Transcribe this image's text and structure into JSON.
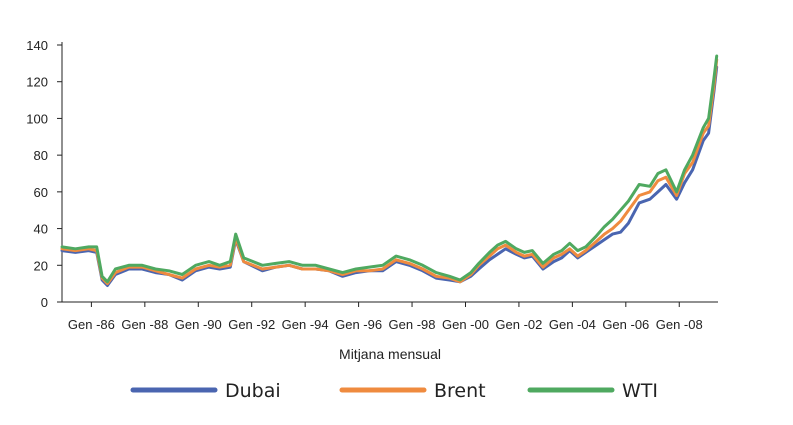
{
  "chart_data": {
    "type": "line",
    "title": "",
    "xlabel": "Mitjana mensual",
    "ylabel": "",
    "ylim": [
      0,
      140
    ],
    "xlim": [
      1984.0,
      2008.55
    ],
    "yticks": [
      0,
      20,
      40,
      60,
      80,
      100,
      120,
      140
    ],
    "xticks": [
      {
        "x": 1985.1,
        "label": "Gen -86"
      },
      {
        "x": 1987.1,
        "label": "Gen -88"
      },
      {
        "x": 1989.1,
        "label": "Gen -90"
      },
      {
        "x": 1991.1,
        "label": "Gen -92"
      },
      {
        "x": 1993.1,
        "label": "Gen -94"
      },
      {
        "x": 1995.1,
        "label": "Gen -96"
      },
      {
        "x": 1997.1,
        "label": "Gen -98"
      },
      {
        "x": 1999.1,
        "label": "Gen -00"
      },
      {
        "x": 2001.1,
        "label": "Gen -02"
      },
      {
        "x": 2003.1,
        "label": "Gen -04"
      },
      {
        "x": 2005.1,
        "label": "Gen -06"
      },
      {
        "x": 2007.1,
        "label": "Gen -08"
      }
    ],
    "grid": false,
    "legend_position": "bottom",
    "x": [
      1984.0,
      1984.5,
      1985.0,
      1985.3,
      1985.5,
      1985.7,
      1986.0,
      1986.5,
      1987.0,
      1987.5,
      1988.0,
      1988.5,
      1989.0,
      1989.5,
      1989.9,
      1990.3,
      1990.5,
      1990.8,
      1991.5,
      1992.0,
      1992.5,
      1993.0,
      1993.5,
      1994.0,
      1994.5,
      1995.0,
      1995.5,
      1996.0,
      1996.5,
      1997.0,
      1997.5,
      1998.0,
      1998.5,
      1998.9,
      1999.3,
      1999.6,
      2000.0,
      2000.3,
      2000.6,
      2001.0,
      2001.3,
      2001.6,
      2002.0,
      2002.4,
      2002.7,
      2003.0,
      2003.3,
      2003.6,
      2004.0,
      2004.3,
      2004.6,
      2004.9,
      2005.2,
      2005.6,
      2006.0,
      2006.3,
      2006.6,
      2007.0,
      2007.3,
      2007.6,
      2008.0,
      2008.2,
      2008.4,
      2008.5
    ],
    "series": [
      {
        "name": "Dubai",
        "color": "#4a65b0",
        "values": [
          28,
          27,
          28,
          27,
          12,
          9,
          15,
          18,
          18,
          16,
          15,
          12,
          17,
          19,
          18,
          19,
          34,
          22,
          17,
          19,
          20,
          18,
          18,
          17,
          14,
          16,
          17,
          17,
          22,
          20,
          17,
          13,
          12,
          11,
          14,
          18,
          23,
          26,
          29,
          26,
          24,
          25,
          18,
          22,
          24,
          28,
          24,
          27,
          31,
          34,
          37,
          38,
          43,
          54,
          56,
          60,
          64,
          56,
          65,
          72,
          88,
          92,
          115,
          128
        ]
      },
      {
        "name": "Brent",
        "color": "#ef8b3f",
        "values": [
          29,
          28,
          29,
          28,
          13,
          10,
          16,
          19,
          19,
          17,
          15,
          13,
          18,
          20,
          19,
          20,
          35,
          22,
          18,
          19,
          20,
          18,
          18,
          17,
          15,
          17,
          17,
          18,
          23,
          21,
          18,
          14,
          13,
          11,
          15,
          20,
          25,
          29,
          31,
          27,
          25,
          26,
          19,
          24,
          26,
          29,
          25,
          28,
          33,
          37,
          40,
          44,
          50,
          58,
          60,
          66,
          68,
          58,
          70,
          76,
          92,
          96,
          118,
          132
        ]
      },
      {
        "name": "WTI",
        "color": "#4fa960",
        "values": [
          30,
          29,
          30,
          30,
          14,
          11,
          18,
          20,
          20,
          18,
          17,
          15,
          20,
          22,
          20,
          22,
          37,
          24,
          20,
          21,
          22,
          20,
          20,
          18,
          16,
          18,
          19,
          20,
          25,
          23,
          20,
          16,
          14,
          12,
          16,
          21,
          27,
          31,
          33,
          29,
          27,
          28,
          21,
          26,
          28,
          32,
          28,
          30,
          36,
          41,
          45,
          50,
          55,
          64,
          63,
          70,
          72,
          60,
          72,
          80,
          95,
          100,
          122,
          134
        ]
      }
    ]
  }
}
